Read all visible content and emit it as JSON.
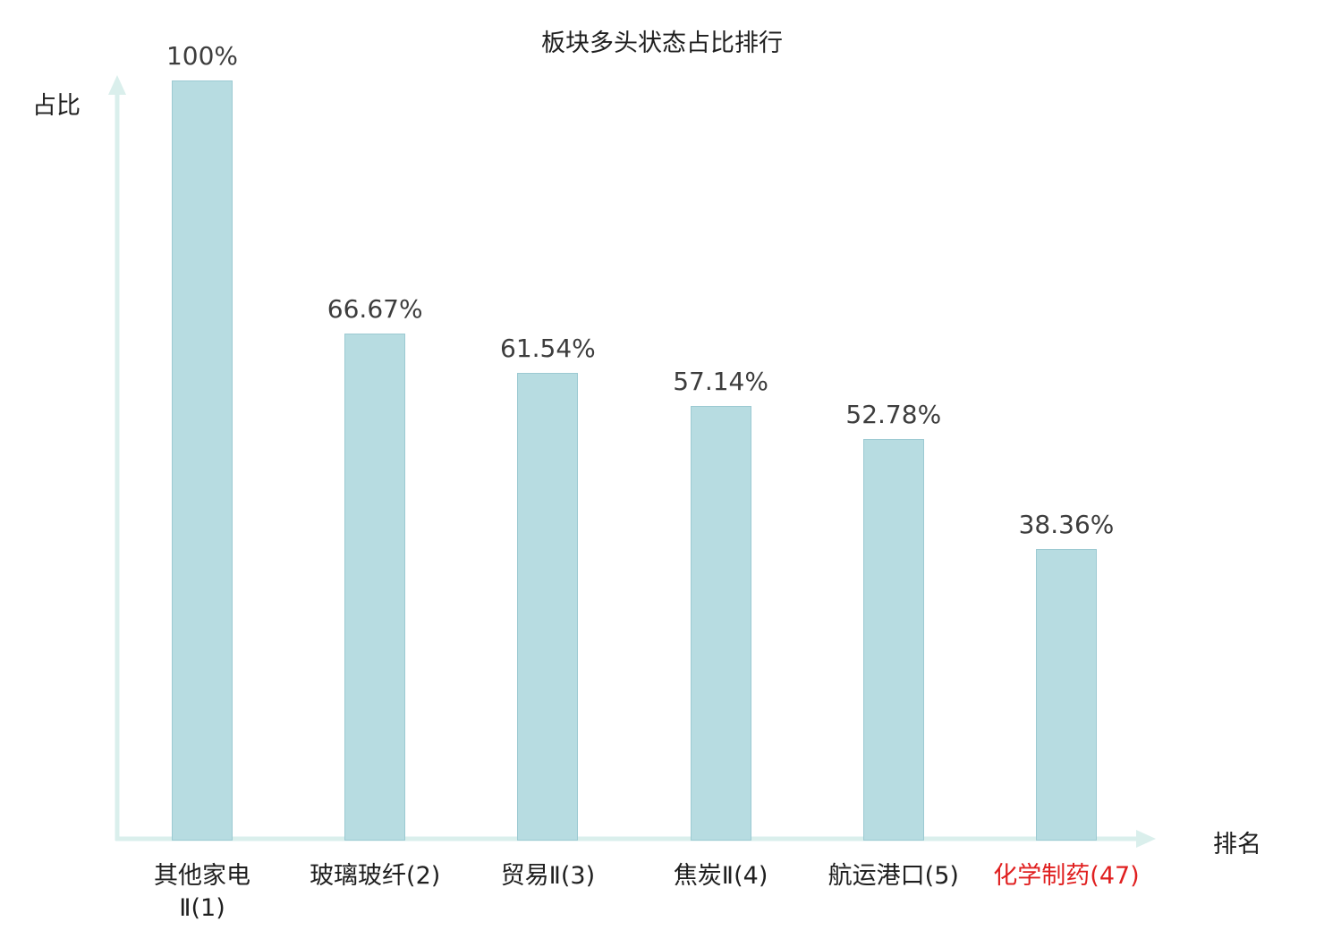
{
  "chart_data": {
    "type": "bar",
    "title": "板块多头状态占比排行",
    "xlabel": "排名",
    "ylabel": "占比",
    "categories": [
      "其他家电\nⅡ(1)",
      "玻璃玻纤(2)",
      "贸易Ⅱ(3)",
      "焦炭Ⅱ(4)",
      "航运港口(5)",
      "化学制药(47)"
    ],
    "values": [
      100,
      66.67,
      61.54,
      57.14,
      52.78,
      38.36
    ],
    "value_labels": [
      "100%",
      "66.67%",
      "61.54%",
      "57.14%",
      "52.78%",
      "38.36%"
    ],
    "ylim": [
      0,
      100
    ],
    "grid": false,
    "legend": "none",
    "highlight_index": 5,
    "colors": {
      "bar_fill": "#b7dce1",
      "bar_border": "#9ccad2",
      "axis": "#daefec",
      "value_label": "#3d3d3d",
      "category_label": "#1f1f1f",
      "highlight_label": "#e02020",
      "title": "#1f1f1f"
    }
  }
}
